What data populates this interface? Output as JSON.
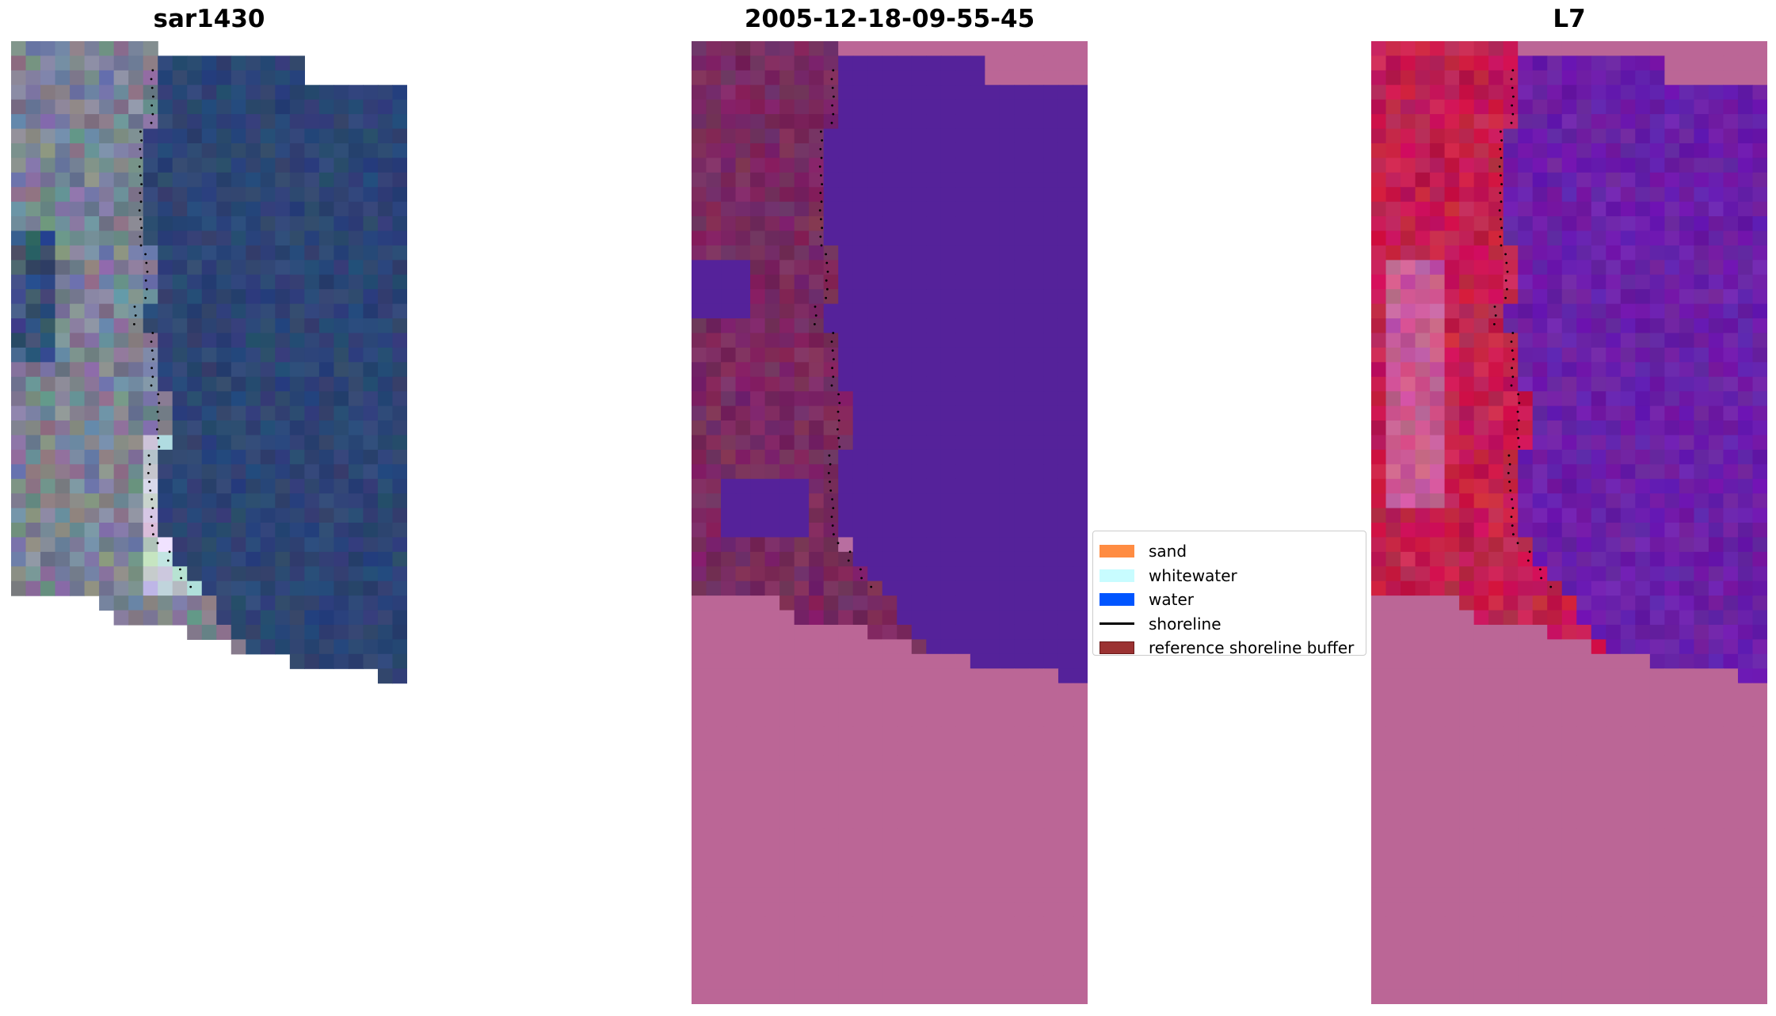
{
  "titles": {
    "left": "sar1430",
    "middle": "2005-12-18-09-55-45",
    "right": "L7"
  },
  "legend": {
    "items": [
      {
        "label": "sand",
        "color": "#ff8c42",
        "kind": "patch"
      },
      {
        "label": "whitewater",
        "color": "#c8fcff",
        "kind": "patch"
      },
      {
        "label": "water",
        "color": "#0055ff",
        "kind": "patch"
      },
      {
        "label": "shoreline",
        "color": "#000000",
        "kind": "line"
      },
      {
        "label": "reference shoreline buffer",
        "color": "#9b3232",
        "kind": "patch"
      }
    ]
  },
  "colors": {
    "ocean_rgb": "#2d4574",
    "land_rgb": "#7b8296",
    "water_class": "#55229a",
    "land_class": "#7a2a60",
    "nodata_mask": "#bb6696",
    "ndwi_water": "#6a1fa8",
    "ndwi_land": "#c21f4e"
  }
}
